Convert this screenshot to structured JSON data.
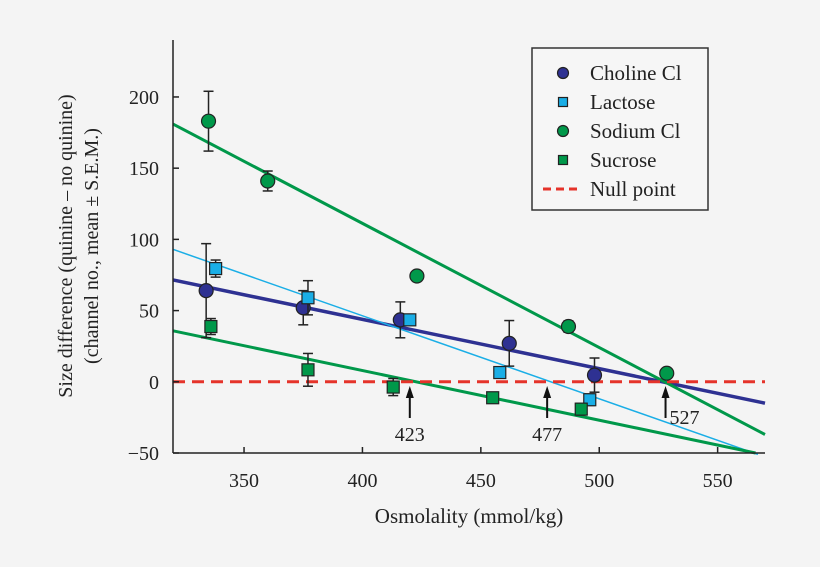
{
  "chart_data": {
    "type": "scatter",
    "xlabel": "Osmolality (mmol/kg)",
    "ylabel": [
      "Size difference (quinine – no quinine)",
      "(channel no., mean ± S.E.M.)"
    ],
    "xlim": [
      320,
      570
    ],
    "ylim": [
      -50,
      240
    ],
    "xticks": [
      350,
      400,
      450,
      500,
      550
    ],
    "yticks": [
      -50,
      0,
      50,
      100,
      150,
      200
    ],
    "xtick_labels": [
      "350",
      "400",
      "450",
      "500",
      "550"
    ],
    "ytick_labels": [
      "−50",
      "0",
      "50",
      "100",
      "150",
      "200"
    ],
    "legend_position": "top-right",
    "series": [
      {
        "name": "Choline Cl",
        "marker": "circle",
        "color": "#2e3192",
        "x": [
          334,
          375,
          416,
          462,
          498
        ],
        "y": [
          64,
          52,
          43.5,
          27,
          4.7
        ],
        "err": [
          33,
          12,
          12.6,
          16,
          12
        ],
        "fit": {
          "x": [
            320,
            570
          ],
          "y": [
            71.5,
            -15
          ]
        },
        "fit_width": 3.5
      },
      {
        "name": "Lactose",
        "marker": "square",
        "color": "#1aaee6",
        "x": [
          338,
          377,
          420,
          458,
          496
        ],
        "y": [
          79.5,
          59,
          43.5,
          6.5,
          -12.6
        ],
        "err": [
          6,
          12,
          2,
          4,
          4
        ],
        "fit": {
          "x": [
            320,
            567
          ],
          "y": [
            93,
            -51
          ]
        },
        "fit_width": 1.5
      },
      {
        "name": "Sodium Cl",
        "marker": "circle",
        "color": "#00984a",
        "x": [
          335,
          360,
          423,
          487,
          528.5
        ],
        "y": [
          183,
          141,
          74.3,
          38.8,
          6
        ],
        "err": [
          21,
          7,
          0,
          4,
          3
        ],
        "fit": {
          "x": [
            320,
            570
          ],
          "y": [
            181,
            -37
          ]
        },
        "fit_width": 3
      },
      {
        "name": "Sucrose",
        "marker": "square",
        "color": "#00984a",
        "x": [
          336,
          377,
          413,
          455,
          492.4
        ],
        "y": [
          38.8,
          8.4,
          -3.7,
          -11.2,
          -19.2
        ],
        "err": [
          5.6,
          11.5,
          6,
          0,
          4
        ],
        "fit": {
          "x": [
            320,
            566
          ],
          "y": [
            35.8,
            -50
          ]
        },
        "fit_width": 3
      }
    ],
    "null_line": {
      "name": "Null point",
      "y": 0,
      "color": "#e5332a"
    },
    "annotations": [
      {
        "text": "423",
        "x": 420
      },
      {
        "text": "477",
        "x": 478
      },
      {
        "text": "527",
        "x": 528
      }
    ]
  }
}
